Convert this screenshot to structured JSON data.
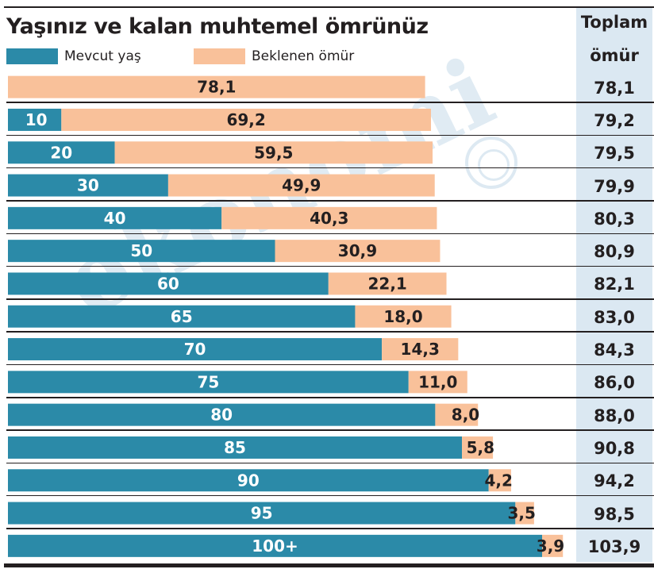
{
  "title": "Yaşınız ve kalan muhtemel ömrünüz",
  "legend": {
    "current": {
      "label": "Mevcut yaş",
      "color": "#2b8aa8"
    },
    "remaining": {
      "label": "Beklenen ömür",
      "color": "#f9c19a"
    }
  },
  "total_header": {
    "line1": "Toplam",
    "line2": "ömür"
  },
  "watermark": "ekonomi",
  "chart_data": {
    "type": "bar",
    "stacked": true,
    "orientation": "horizontal",
    "title": "Yaşınız ve kalan muhtemel ömrünüz",
    "categories": [
      "",
      "10",
      "20",
      "30",
      "40",
      "50",
      "60",
      "65",
      "70",
      "75",
      "80",
      "85",
      "90",
      "95",
      "100+"
    ],
    "series": [
      {
        "name": "Mevcut yaş",
        "color": "#2b8aa8",
        "values": [
          0,
          10,
          20,
          30,
          40,
          50,
          60,
          65,
          70,
          75,
          80,
          85,
          90,
          95,
          100
        ],
        "labels": [
          "",
          "10",
          "20",
          "30",
          "40",
          "50",
          "60",
          "65",
          "70",
          "75",
          "80",
          "85",
          "90",
          "95",
          "100+"
        ]
      },
      {
        "name": "Beklenen ömür",
        "color": "#f9c19a",
        "values": [
          78.1,
          69.2,
          59.5,
          49.9,
          40.3,
          30.9,
          22.1,
          18.0,
          14.3,
          11.0,
          8.0,
          5.8,
          4.2,
          3.5,
          3.9
        ],
        "labels": [
          "78,1",
          "69,2",
          "59,5",
          "49,9",
          "40,3",
          "30,9",
          "22,1",
          "18,0",
          "14,3",
          "11,0",
          "8,0",
          "5,8",
          "4,2",
          "3,5",
          "3,9"
        ]
      }
    ],
    "totals": [
      "78,1",
      "79,2",
      "79,5",
      "79,9",
      "80,3",
      "80,9",
      "82,1",
      "83,0",
      "84,3",
      "86,0",
      "88,0",
      "90,8",
      "94,2",
      "98,5",
      "103,9"
    ],
    "xlim": [
      0,
      104
    ],
    "grid": false,
    "legend_position": "top-left"
  }
}
